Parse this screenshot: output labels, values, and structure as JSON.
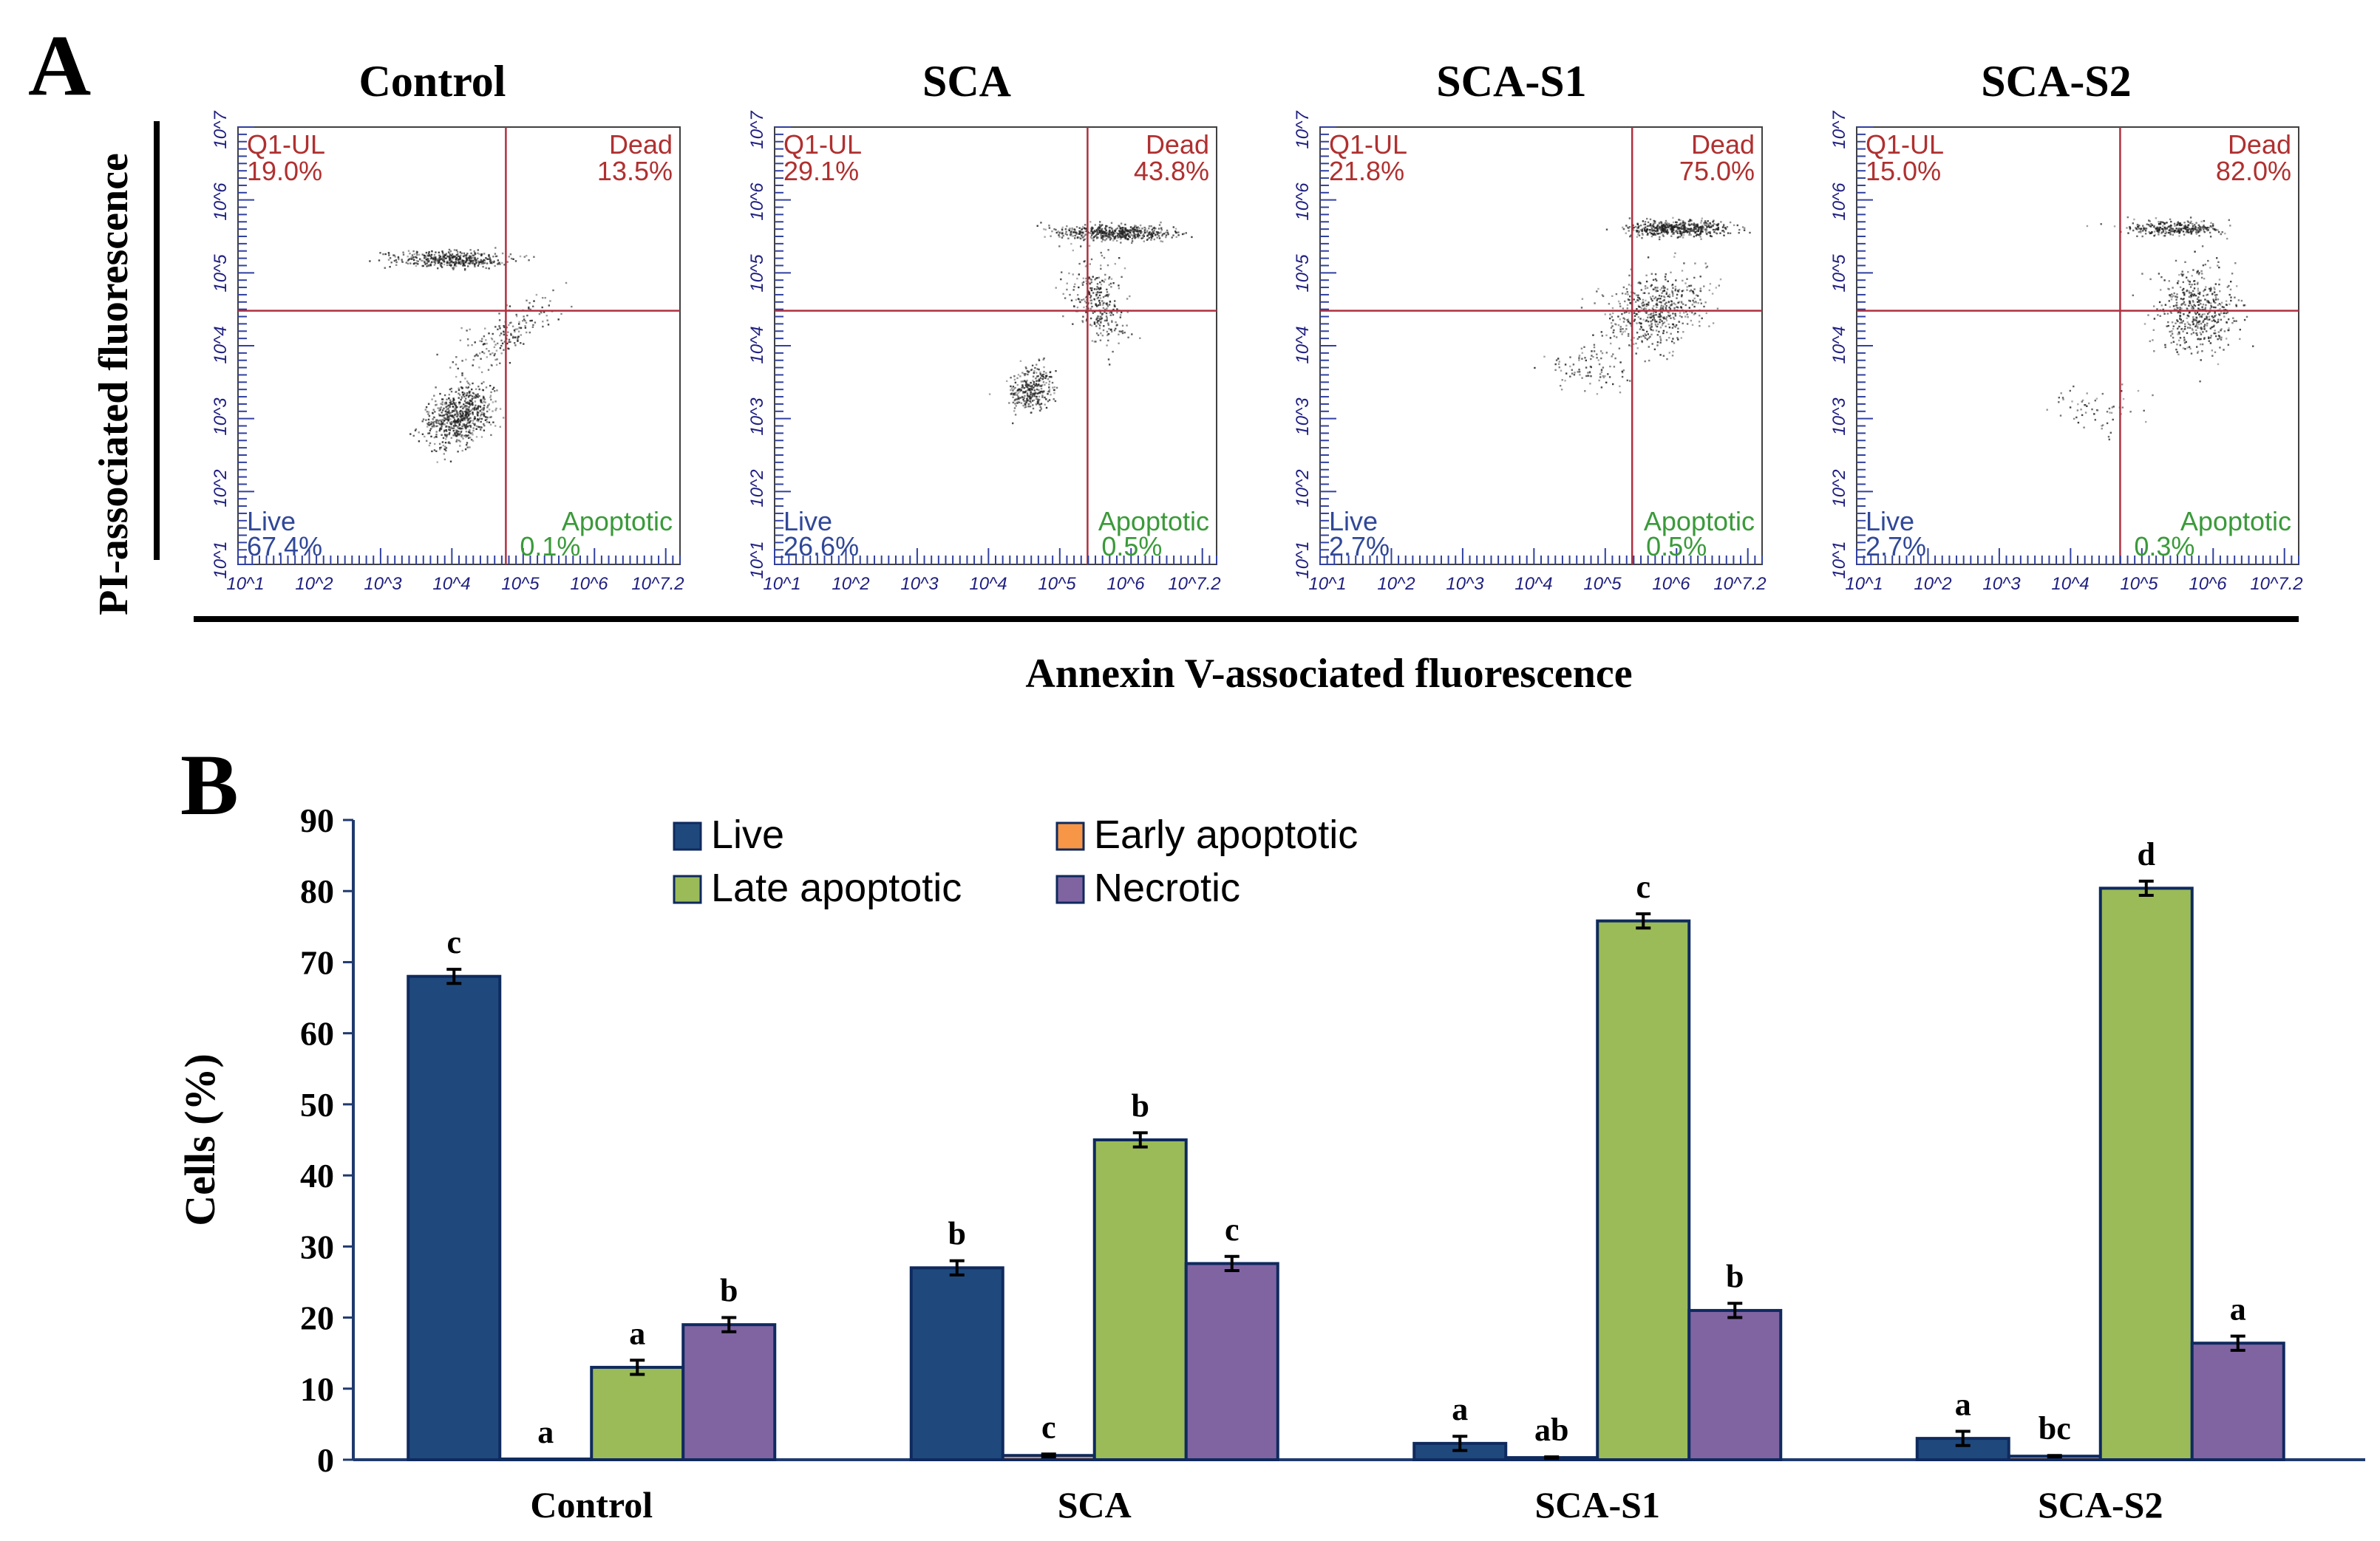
{
  "panel_a": {
    "letter": "A",
    "x_axis_title": "Annexin V-associated fluorescence",
    "y_axis_title": "PI-associated fluorescence",
    "plots": [
      {
        "title": "Control",
        "ul_label": "Q1-UL",
        "ul_pct": "19.0%",
        "ur_label": "Dead",
        "ur_pct": "13.5%",
        "ll_label": "Live",
        "ll_pct": "67.4%",
        "lr_label": "Apoptotic",
        "lr_pct": "0.1%"
      },
      {
        "title": "SCA",
        "ul_label": "Q1-UL",
        "ul_pct": "29.1%",
        "ur_label": "Dead",
        "ur_pct": "43.8%",
        "ll_label": "Live",
        "ll_pct": "26.6%",
        "lr_label": "Apoptotic",
        "lr_pct": "0.5%"
      },
      {
        "title": "SCA-S1",
        "ul_label": "Q1-UL",
        "ul_pct": "21.8%",
        "ur_label": "Dead",
        "ur_pct": "75.0%",
        "ll_label": "Live",
        "ll_pct": "2.7%",
        "lr_label": "Apoptotic",
        "lr_pct": "0.5%"
      },
      {
        "title": "SCA-S2",
        "ul_label": "Q1-UL",
        "ul_pct": "15.0%",
        "ur_label": "Dead",
        "ur_pct": "82.0%",
        "ll_label": "Live",
        "ll_pct": "2.7%",
        "lr_label": "Apoptotic",
        "lr_pct": "0.3%"
      }
    ],
    "x_ticks": [
      "10^1",
      "10^2",
      "10^3",
      "10^4",
      "10^5",
      "10^6",
      "10^7.2"
    ],
    "y_ticks": [
      "10^1",
      "10^2",
      "10^3",
      "10^4",
      "10^5",
      "10^6",
      "10^7"
    ]
  },
  "panel_b": {
    "letter": "B"
  },
  "chart_data": {
    "type": "bar",
    "title": "",
    "xlabel": "",
    "ylabel": "Cells (%)",
    "ylim": [
      0,
      90
    ],
    "yticks": [
      0,
      10,
      20,
      30,
      40,
      50,
      60,
      70,
      80,
      90
    ],
    "categories": [
      "Control",
      "SCA",
      "SCA-S1",
      "SCA-S2"
    ],
    "series": [
      {
        "name": "Live",
        "color": "#1f497d",
        "values": [
          68,
          27,
          2.3,
          3
        ],
        "errors": [
          1,
          1,
          1,
          1
        ],
        "sig": [
          "c",
          "b",
          "a",
          "a"
        ]
      },
      {
        "name": "Early apoptotic",
        "color": "#f79646",
        "values": [
          0.1,
          0.6,
          0.3,
          0.5
        ],
        "errors": [
          0,
          0.2,
          0.1,
          0.1
        ],
        "sig": [
          "a",
          "c",
          "ab",
          "bc"
        ]
      },
      {
        "name": "Late apoptotic",
        "color": "#9bbb59",
        "values": [
          13,
          45,
          75.8,
          80.4
        ],
        "errors": [
          1,
          1,
          1,
          1
        ],
        "sig": [
          "a",
          "b",
          "c",
          "d"
        ]
      },
      {
        "name": "Necrotic",
        "color": "#8064a2",
        "values": [
          19,
          27.6,
          21,
          16.4
        ],
        "errors": [
          1,
          1,
          1,
          1
        ],
        "sig": [
          "b",
          "c",
          "b",
          "a"
        ]
      }
    ],
    "legend": [
      "Live",
      "Early apoptotic",
      "Late apoptotic",
      "Necrotic"
    ]
  }
}
